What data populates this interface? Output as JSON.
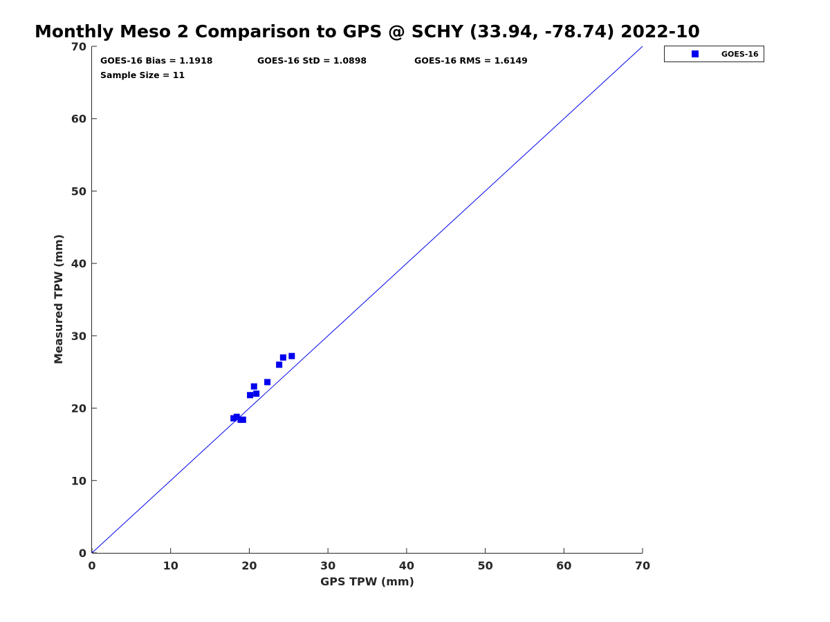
{
  "chart_data": {
    "type": "scatter",
    "title": "Monthly Meso 2 Comparison to GPS @ SCHY (33.94, -78.74) 2022-10",
    "xlabel": "GPS TPW (mm)",
    "ylabel": "Measured TPW (mm)",
    "xlim": [
      0,
      70
    ],
    "ylim": [
      0,
      70
    ],
    "xticks": [
      "0",
      "10",
      "20",
      "30",
      "40",
      "50",
      "60",
      "70"
    ],
    "yticks": [
      "0",
      "10",
      "20",
      "30",
      "40",
      "50",
      "60",
      "70"
    ],
    "grid": false,
    "legend_position": "top-right outside",
    "series": [
      {
        "name": "GOES-16",
        "color": "#0000ee",
        "marker": "square",
        "x": [
          18.0,
          18.4,
          18.9,
          19.2,
          20.1,
          20.6,
          20.9,
          22.3,
          23.8,
          24.3,
          25.4
        ],
        "y": [
          18.6,
          18.8,
          18.4,
          18.4,
          21.8,
          23.0,
          22.0,
          23.6,
          26.0,
          27.0,
          27.2
        ]
      }
    ],
    "reference_line": {
      "name": "1:1 line",
      "color": "#0000ee",
      "x": [
        0,
        70
      ],
      "y": [
        0,
        70
      ]
    },
    "annotations": {
      "bias": "GOES-16 Bias = 1.1918",
      "std": "GOES-16 StD = 1.0898",
      "rms": "GOES-16 RMS = 1.6149",
      "sample_size": "Sample Size = 11"
    }
  }
}
